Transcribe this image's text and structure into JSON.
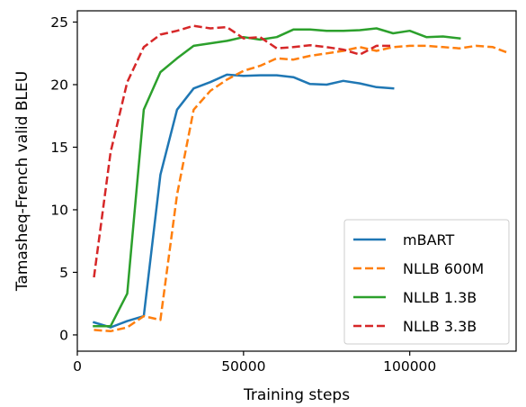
{
  "chart_data": {
    "type": "line",
    "xlabel": "Training steps",
    "ylabel": "Tamasheq-French valid BLEU",
    "xlim": [
      0,
      132000
    ],
    "ylim": [
      -1.3,
      25.9
    ],
    "xticks": [
      0,
      50000,
      100000
    ],
    "xtick_labels": [
      "0",
      "50000",
      "100000"
    ],
    "yticks": [
      0,
      5,
      10,
      15,
      20,
      25
    ],
    "ytick_labels": [
      "0",
      "5",
      "10",
      "15",
      "20",
      "25"
    ],
    "grid": false,
    "legend_position": "lower-right",
    "series": [
      {
        "name": "mBART",
        "color": "#1f77b4",
        "dash": "solid",
        "x": [
          5000,
          10000,
          15000,
          20000,
          25000,
          30000,
          35000,
          40000,
          45000,
          50000,
          55000,
          60000,
          65000,
          70000,
          75000,
          80000,
          85000,
          90000,
          95000
        ],
        "y": [
          1.0,
          0.6,
          1.1,
          1.5,
          12.8,
          18.0,
          19.7,
          20.2,
          20.8,
          20.7,
          20.75,
          20.75,
          20.6,
          20.05,
          20.0,
          20.3,
          20.1,
          19.8,
          19.7
        ]
      },
      {
        "name": "NLLB 600M",
        "color": "#ff7f0e",
        "dash": "dashed",
        "x": [
          5000,
          10000,
          15000,
          20000,
          25000,
          30000,
          35000,
          40000,
          45000,
          50000,
          55000,
          60000,
          65000,
          70000,
          75000,
          80000,
          85000,
          90000,
          95000,
          100000,
          105000,
          110000,
          115000,
          120000,
          125000,
          130000
        ],
        "y": [
          0.4,
          0.3,
          0.6,
          1.5,
          1.2,
          11.2,
          18.0,
          19.5,
          20.4,
          21.1,
          21.5,
          22.1,
          22.0,
          22.3,
          22.5,
          22.7,
          23.0,
          22.7,
          23.0,
          23.1,
          23.1,
          23.0,
          22.9,
          23.1,
          23.0,
          22.5
        ]
      },
      {
        "name": "NLLB 1.3B",
        "color": "#2ca02c",
        "dash": "solid",
        "x": [
          5000,
          10000,
          15000,
          20000,
          25000,
          30000,
          35000,
          40000,
          45000,
          50000,
          55000,
          60000,
          65000,
          70000,
          75000,
          80000,
          85000,
          90000,
          95000,
          100000,
          105000,
          110000,
          115000
        ],
        "y": [
          0.7,
          0.7,
          3.3,
          18.0,
          21.0,
          22.1,
          23.1,
          23.3,
          23.5,
          23.8,
          23.6,
          23.8,
          24.4,
          24.4,
          24.3,
          24.3,
          24.35,
          24.5,
          24.1,
          24.3,
          23.8,
          23.85,
          23.7
        ]
      },
      {
        "name": "NLLB 3.3B",
        "color": "#d62728",
        "dash": "dashed",
        "x": [
          5000,
          10000,
          15000,
          20000,
          25000,
          30000,
          35000,
          40000,
          45000,
          50000,
          55000,
          60000,
          65000,
          70000,
          75000,
          80000,
          85000,
          90000,
          95000
        ],
        "y": [
          4.6,
          14.6,
          20.2,
          23.0,
          24.0,
          24.3,
          24.7,
          24.5,
          24.6,
          23.7,
          23.8,
          22.9,
          23.0,
          23.15,
          23.0,
          22.8,
          22.4,
          23.1,
          23.1
        ]
      }
    ]
  }
}
